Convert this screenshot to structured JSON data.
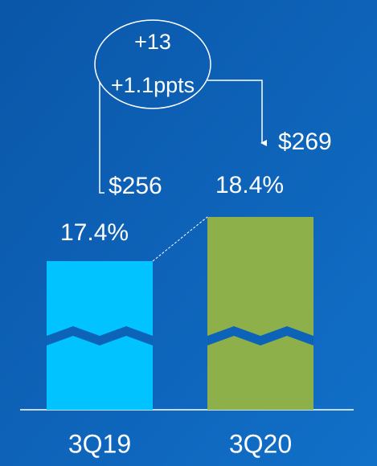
{
  "chart_data": {
    "type": "bar",
    "categories": [
      "3Q19",
      "3Q20"
    ],
    "values": [
      256,
      269
    ],
    "value_labels": [
      "$256",
      "$269"
    ],
    "colors": [
      "#00c3ff",
      "#8db04a"
    ],
    "shares": {
      "values": [
        17.4,
        18.4
      ],
      "value_labels": [
        "17.4%",
        "18.4%"
      ]
    },
    "annotations": [
      "+13",
      "+1.1ppts"
    ],
    "axis_break": true
  }
}
